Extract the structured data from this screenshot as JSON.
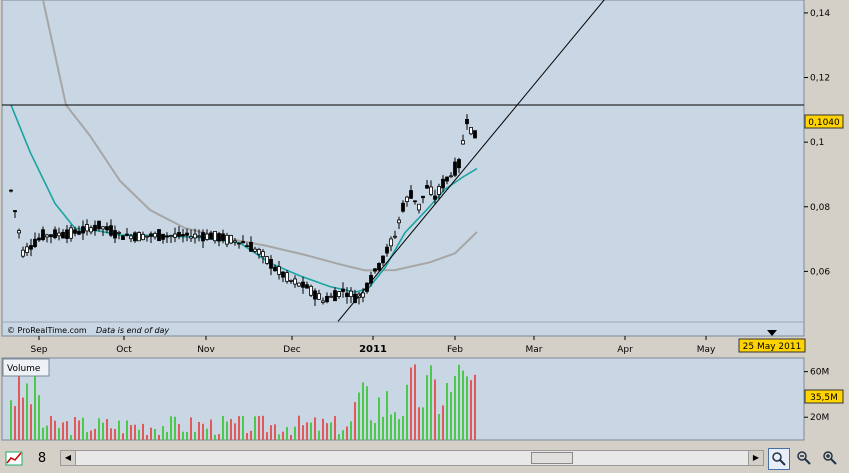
{
  "chart_data": {
    "type": "candlestick",
    "price_axis": {
      "ticks": [
        "0,14",
        "0,12",
        "0,1",
        "0,08",
        "0,06"
      ],
      "tick_values": [
        0.14,
        0.12,
        0.1,
        0.08,
        0.06
      ],
      "range": [
        0.04,
        0.144
      ]
    },
    "current_price_label": "0,1040",
    "date_axis": {
      "labels": [
        "Sep",
        "Oct",
        "Nov",
        "Dec",
        "2011",
        "Feb",
        "Mar",
        "Apr",
        "May"
      ],
      "current_date_label": "25 May 2011"
    },
    "horizontal_line": 0.1115,
    "trendline": [
      [
        0.0445,
        0.1447
      ]
    ],
    "credit": "© ProRealTime.com",
    "note": "Data is end of day",
    "volume": {
      "label": "Volume",
      "ticks": [
        "60M",
        "20M"
      ],
      "tick_values": [
        60,
        20
      ],
      "current_label": "35,5M",
      "max": 72
    },
    "colors": {
      "plot_bg": "#c9d6e3",
      "frame_bg": "#d4d0c8",
      "ma_fast": "#1aa3a3",
      "ma_slow": "#a6a6a6",
      "vol_up": "#4cc84c",
      "vol_down": "#e05a5a",
      "price_badge": "#ffd400"
    }
  },
  "toolbar": {
    "icons": [
      "chart-tools-icon",
      "eight-icon",
      "scroll-left-icon",
      "scroll-right-icon",
      "zoom-fit-icon",
      "zoom-out-icon",
      "zoom-in-icon"
    ]
  }
}
